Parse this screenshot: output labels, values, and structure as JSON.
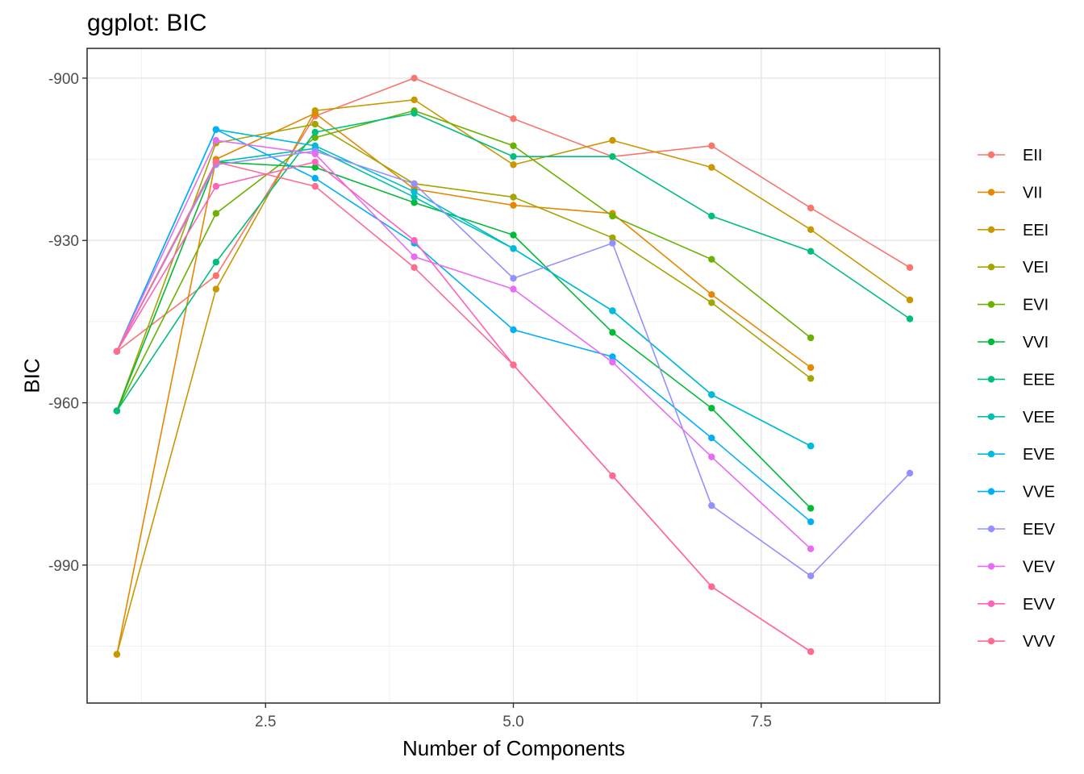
{
  "chart_data": {
    "type": "line",
    "title": "ggplot: BIC",
    "xlabel": "Number of Components",
    "ylabel": "BIC",
    "xlim": [
      0.7,
      9.3
    ],
    "ylim": [
      -1015.5,
      -894.5
    ],
    "x_ticks": [
      2.5,
      5.0,
      7.5
    ],
    "x_tick_labels": [
      "2.5",
      "5.0",
      "7.5"
    ],
    "y_ticks": [
      -900,
      -930,
      -960,
      -990
    ],
    "y_tick_labels": [
      "-900",
      "-930",
      "-960",
      "-990"
    ],
    "grid": true,
    "legend_position": "right",
    "series": [
      {
        "name": "EII",
        "color": "#F8766D",
        "points": [
          [
            1,
            -950.5
          ],
          [
            2,
            -936.5
          ],
          [
            3,
            -907
          ],
          [
            4,
            -900
          ],
          [
            5,
            -907.5
          ],
          [
            6,
            -914.5
          ],
          [
            7,
            -912.5
          ],
          [
            8,
            -924
          ],
          [
            9,
            -935
          ]
        ]
      },
      {
        "name": "VII",
        "color": "#E58700",
        "points": [
          [
            1,
            -1006.5
          ],
          [
            2,
            -915
          ],
          [
            3,
            -906.5
          ],
          [
            4,
            -920.5
          ],
          [
            5,
            -923.5
          ],
          [
            6,
            -925
          ],
          [
            7,
            -940
          ],
          [
            8,
            -953.5
          ]
        ]
      },
      {
        "name": "EEI",
        "color": "#C99800",
        "points": [
          [
            1,
            -1006.5
          ],
          [
            2,
            -939
          ],
          [
            3,
            -906
          ],
          [
            4,
            -904
          ],
          [
            5,
            -916
          ],
          [
            6,
            -911.5
          ],
          [
            7,
            -916.5
          ],
          [
            8,
            -928
          ],
          [
            9,
            -941
          ]
        ]
      },
      {
        "name": "VEI",
        "color": "#A3A500",
        "points": [
          [
            1,
            -961.5
          ],
          [
            2,
            -912
          ],
          [
            3,
            -908.5
          ],
          [
            4,
            -919.5
          ],
          [
            5,
            -922
          ],
          [
            6,
            -929.5
          ],
          [
            7,
            -941.5
          ],
          [
            8,
            -955.5
          ]
        ]
      },
      {
        "name": "EVI",
        "color": "#6BB100",
        "points": [
          [
            1,
            -961.5
          ],
          [
            2,
            -925
          ],
          [
            3,
            -911
          ],
          [
            4,
            -906
          ],
          [
            5,
            -912.5
          ],
          [
            6,
            -925.5
          ],
          [
            7,
            -933.5
          ],
          [
            8,
            -948
          ]
        ]
      },
      {
        "name": "VVI",
        "color": "#00BA38",
        "points": [
          [
            1,
            -961.5
          ],
          [
            2,
            -915.5
          ],
          [
            3,
            -916.5
          ],
          [
            4,
            -923
          ],
          [
            5,
            -929
          ],
          [
            6,
            -947
          ],
          [
            7,
            -961
          ],
          [
            8,
            -979.5
          ]
        ]
      },
      {
        "name": "EEE",
        "color": "#00BF7D",
        "points": [
          [
            1,
            -961.5
          ],
          [
            2,
            -934
          ],
          [
            3,
            -910
          ],
          [
            4,
            -906.5
          ],
          [
            5,
            -914.5
          ],
          [
            6,
            -914.5
          ],
          [
            7,
            -925.5
          ],
          [
            8,
            -932
          ],
          [
            9,
            -944.5
          ]
        ]
      },
      {
        "name": "VEE",
        "color": "#00C0AF",
        "points": [
          [
            1,
            -950.5
          ],
          [
            2,
            -915.5
          ],
          [
            3,
            -913
          ],
          [
            4,
            -922
          ],
          [
            5,
            -931.5
          ],
          [
            6,
            -943
          ],
          [
            7,
            -958.5
          ],
          [
            8,
            -968
          ]
        ]
      },
      {
        "name": "EVE",
        "color": "#00BCD8",
        "points": [
          [
            1,
            -950.5
          ],
          [
            2,
            -909.5
          ],
          [
            3,
            -912.5
          ],
          [
            4,
            -921
          ],
          [
            5,
            -931.5
          ],
          [
            6,
            -943
          ],
          [
            7,
            -958.5
          ],
          [
            8,
            -968
          ]
        ]
      },
      {
        "name": "VVE",
        "color": "#00B0F6",
        "points": [
          [
            1,
            -950.5
          ],
          [
            2,
            -909.5
          ],
          [
            3,
            -918.5
          ],
          [
            4,
            -930.5
          ],
          [
            5,
            -946.5
          ],
          [
            6,
            -951.5
          ],
          [
            7,
            -966.5
          ],
          [
            8,
            -982
          ]
        ]
      },
      {
        "name": "EEV",
        "color": "#9590FF",
        "points": [
          [
            1,
            -950.5
          ],
          [
            2,
            -916
          ],
          [
            3,
            -913.5
          ],
          [
            4,
            -919.5
          ],
          [
            5,
            -937
          ],
          [
            6,
            -930.5
          ],
          [
            7,
            -979
          ],
          [
            8,
            -992
          ],
          [
            9,
            -973
          ]
        ]
      },
      {
        "name": "VEV",
        "color": "#E76BF3",
        "points": [
          [
            1,
            -950.5
          ],
          [
            2,
            -911.5
          ],
          [
            3,
            -914
          ],
          [
            4,
            -933
          ],
          [
            5,
            -939
          ],
          [
            6,
            -952.5
          ],
          [
            7,
            -970
          ],
          [
            8,
            -987
          ]
        ]
      },
      {
        "name": "EVV",
        "color": "#FF62BC",
        "points": [
          [
            1,
            -950.5
          ],
          [
            2,
            -920
          ],
          [
            3,
            -915.5
          ],
          [
            4,
            -930
          ],
          [
            5,
            -953
          ],
          [
            6,
            -973.5
          ],
          [
            7,
            -994
          ],
          [
            8,
            -1006
          ]
        ]
      },
      {
        "name": "VVV",
        "color": "#FF6C91",
        "points": [
          [
            1,
            -950.5
          ],
          [
            2,
            -915.5
          ],
          [
            3,
            -920
          ],
          [
            4,
            -935
          ],
          [
            5,
            -953
          ],
          [
            6,
            -973.5
          ],
          [
            7,
            -994
          ],
          [
            8,
            -1006
          ]
        ]
      }
    ]
  }
}
